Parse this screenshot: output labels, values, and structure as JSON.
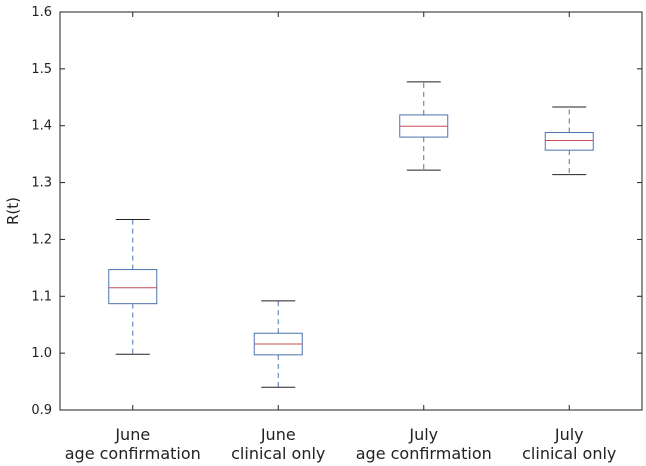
{
  "chart_data": {
    "type": "boxplot",
    "title": "",
    "xlabel": "",
    "ylabel": "R(t)",
    "ylim": [
      0.9,
      1.6
    ],
    "yticks": [
      "0.9",
      "1.0",
      "1.1",
      "1.2",
      "1.3",
      "1.4",
      "1.5",
      "1.6"
    ],
    "grid": false,
    "categories": [
      [
        "June",
        "age confirmation"
      ],
      [
        "June",
        "clinical only"
      ],
      [
        "July",
        "age confirmation"
      ],
      [
        "July",
        "clinical only"
      ]
    ],
    "boxes": [
      {
        "whisker_low": 0.998,
        "q1": 1.087,
        "median": 1.115,
        "q3": 1.147,
        "whisker_high": 1.235
      },
      {
        "whisker_low": 0.94,
        "q1": 0.997,
        "median": 1.016,
        "q3": 1.035,
        "whisker_high": 1.092
      },
      {
        "whisker_low": 1.322,
        "q1": 1.38,
        "median": 1.399,
        "q3": 1.419,
        "whisker_high": 1.477
      },
      {
        "whisker_low": 1.314,
        "q1": 1.357,
        "median": 1.374,
        "q3": 1.388,
        "whisker_high": 1.433
      }
    ],
    "colors": {
      "box": "#4c72b0",
      "median": "#c44e52",
      "cap": "#222222",
      "axis": "#222222"
    }
  }
}
